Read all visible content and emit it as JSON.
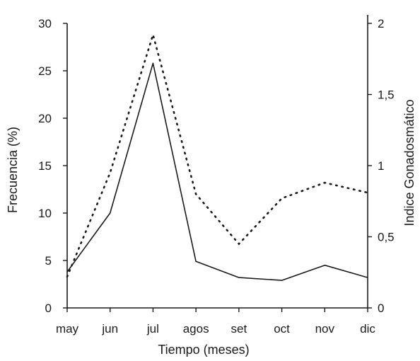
{
  "chart_data": {
    "type": "line",
    "categories": [
      "may",
      "jun",
      "jul",
      "agos",
      "set",
      "oct",
      "nov",
      "dic"
    ],
    "xlabel": "Tiempo (meses)",
    "ylabel": "Frecuencia (%)",
    "ylabel_right": "Indice Gonadosmático",
    "ylim": [
      0,
      30
    ],
    "ylim_right": [
      0,
      2
    ],
    "yticks": [
      "0",
      "5",
      "10",
      "15",
      "20",
      "25",
      "30"
    ],
    "yticks_right": [
      "0",
      "0,5",
      "1",
      "1,5",
      "2"
    ],
    "grid": false,
    "legend": "none",
    "series": [
      {
        "axis": "left",
        "style": "solid",
        "values": [
          3.8,
          10.0,
          25.8,
          4.9,
          3.2,
          2.9,
          4.5,
          3.2
        ]
      },
      {
        "axis": "right",
        "style": "dotted",
        "values": [
          0.22,
          0.95,
          1.92,
          0.8,
          0.45,
          0.77,
          0.88,
          0.81
        ]
      }
    ]
  }
}
